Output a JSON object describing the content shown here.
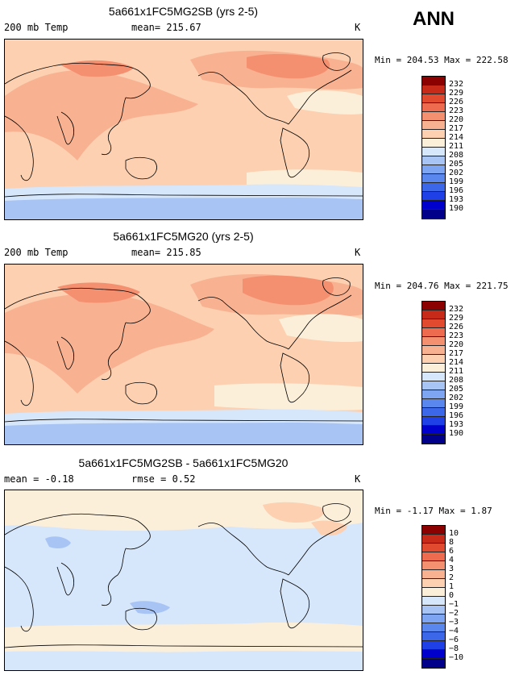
{
  "season": "ANN",
  "colors": {
    "temp": [
      "#00008b",
      "#0000cd",
      "#1e40e6",
      "#3b67e8",
      "#5a87ee",
      "#7ea5f2",
      "#a8c4f5",
      "#d6e6fb",
      "#fcefd9",
      "#fcd0b0",
      "#f8b191",
      "#f49070",
      "#ef6b4f",
      "#e24a30",
      "#c82a1a",
      "#8b0000"
    ],
    "diff": [
      "#00008b",
      "#0000cd",
      "#1e40e6",
      "#3b67e8",
      "#5a87ee",
      "#7ea5f2",
      "#a8c4f5",
      "#d6e6fb",
      "#fcefd9",
      "#fcd0b0",
      "#f8b191",
      "#f49070",
      "#ef6b4f",
      "#e24a30",
      "#c82a1a",
      "#8b0000"
    ]
  },
  "panels": [
    {
      "title": "5a661x1FC5MG2SB (yrs 2-5)",
      "left_label": "200 mb Temp",
      "mid_label": "mean= 215.67",
      "units": "K",
      "minmax": "Min = 204.53 Max = 222.58",
      "levels": [
        "232",
        "229",
        "226",
        "223",
        "220",
        "217",
        "214",
        "211",
        "208",
        "205",
        "202",
        "199",
        "196",
        "193",
        "190"
      ]
    },
    {
      "title": "5a661x1FC5MG20 (yrs 2-5)",
      "left_label": "200 mb Temp",
      "mid_label": "mean= 215.85",
      "units": "K",
      "minmax": "Min = 204.76 Max = 221.75",
      "levels": [
        "232",
        "229",
        "226",
        "223",
        "220",
        "217",
        "214",
        "211",
        "208",
        "205",
        "202",
        "199",
        "196",
        "193",
        "190"
      ]
    },
    {
      "title": "5a661x1FC5MG2SB - 5a661x1FC5MG20",
      "left_label": "mean =  -0.18",
      "mid_label": "rmse =  0.52",
      "units": "K",
      "minmax": "Min =  -1.17 Max =   1.87",
      "levels": [
        "10",
        "8",
        "6",
        "4",
        "3",
        "2",
        "1",
        "0",
        "−1",
        "−2",
        "−3",
        "−4",
        "−6",
        "−8",
        "−10"
      ]
    }
  ]
}
